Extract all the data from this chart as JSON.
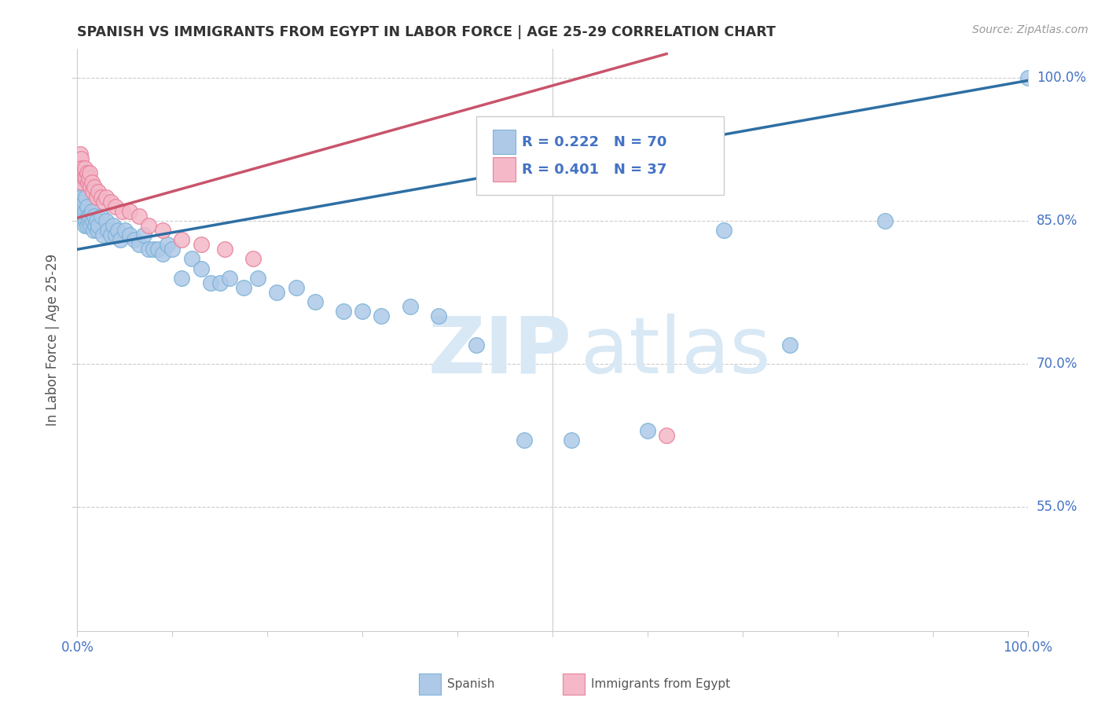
{
  "title": "SPANISH VS IMMIGRANTS FROM EGYPT IN LABOR FORCE | AGE 25-29 CORRELATION CHART",
  "source_text": "Source: ZipAtlas.com",
  "ylabel": "In Labor Force | Age 25-29",
  "xlim": [
    0.0,
    1.0
  ],
  "ylim": [
    0.42,
    1.03
  ],
  "yticks": [
    0.55,
    0.7,
    0.85,
    1.0
  ],
  "ytick_labels": [
    "55.0%",
    "70.0%",
    "85.0%",
    "100.0%"
  ],
  "blue_color": "#aec9e8",
  "blue_edge_color": "#7db3d8",
  "pink_color": "#f4b8c8",
  "pink_edge_color": "#e8829c",
  "blue_line_color": "#2E6FA3",
  "pink_line_color": "#c9546c",
  "background_color": "#ffffff",
  "grid_color": "#cccccc",
  "tick_color": "#4472C4",
  "title_color": "#333333",
  "watermark_color": "#d8e8f5",
  "spanish_x": [
    0.003,
    0.003,
    0.004,
    0.005,
    0.005,
    0.006,
    0.007,
    0.007,
    0.008,
    0.008,
    0.009,
    0.009,
    0.01,
    0.01,
    0.011,
    0.012,
    0.013,
    0.014,
    0.015,
    0.016,
    0.017,
    0.018,
    0.019,
    0.02,
    0.021,
    0.022,
    0.025,
    0.027,
    0.03,
    0.032,
    0.035,
    0.038,
    0.04,
    0.043,
    0.045,
    0.05,
    0.055,
    0.06,
    0.065,
    0.07,
    0.075,
    0.08,
    0.085,
    0.09,
    0.095,
    0.1,
    0.11,
    0.12,
    0.13,
    0.14,
    0.15,
    0.16,
    0.175,
    0.19,
    0.21,
    0.23,
    0.25,
    0.28,
    0.3,
    0.32,
    0.35,
    0.38,
    0.42,
    0.47,
    0.52,
    0.6,
    0.68,
    0.75,
    0.85,
    1.0
  ],
  "spanish_y": [
    0.895,
    0.88,
    0.87,
    0.875,
    0.855,
    0.865,
    0.87,
    0.855,
    0.86,
    0.845,
    0.875,
    0.85,
    0.865,
    0.845,
    0.855,
    0.85,
    0.855,
    0.845,
    0.86,
    0.85,
    0.84,
    0.855,
    0.845,
    0.85,
    0.84,
    0.845,
    0.855,
    0.835,
    0.85,
    0.84,
    0.835,
    0.845,
    0.835,
    0.84,
    0.83,
    0.84,
    0.835,
    0.83,
    0.825,
    0.835,
    0.82,
    0.82,
    0.82,
    0.815,
    0.825,
    0.82,
    0.79,
    0.81,
    0.8,
    0.785,
    0.785,
    0.79,
    0.78,
    0.79,
    0.775,
    0.78,
    0.765,
    0.755,
    0.755,
    0.75,
    0.76,
    0.75,
    0.72,
    0.62,
    0.62,
    0.63,
    0.84,
    0.72,
    0.85,
    1.0
  ],
  "egypt_x": [
    0.001,
    0.002,
    0.003,
    0.003,
    0.004,
    0.004,
    0.005,
    0.005,
    0.006,
    0.007,
    0.008,
    0.009,
    0.01,
    0.011,
    0.012,
    0.013,
    0.014,
    0.015,
    0.016,
    0.018,
    0.02,
    0.022,
    0.025,
    0.028,
    0.03,
    0.035,
    0.04,
    0.048,
    0.055,
    0.065,
    0.075,
    0.09,
    0.11,
    0.13,
    0.155,
    0.185,
    0.62
  ],
  "egypt_y": [
    0.91,
    0.905,
    0.92,
    0.9,
    0.915,
    0.895,
    0.905,
    0.89,
    0.9,
    0.895,
    0.905,
    0.895,
    0.9,
    0.89,
    0.895,
    0.9,
    0.885,
    0.89,
    0.88,
    0.885,
    0.875,
    0.88,
    0.875,
    0.87,
    0.875,
    0.87,
    0.865,
    0.86,
    0.86,
    0.855,
    0.845,
    0.84,
    0.83,
    0.825,
    0.82,
    0.81,
    0.625
  ],
  "blue_line_x": [
    0.0,
    1.0
  ],
  "blue_line_y": [
    0.82,
    0.997
  ],
  "pink_line_x": [
    0.0,
    0.62
  ],
  "pink_line_y": [
    0.853,
    1.025
  ],
  "legend_r_blue": "R = 0.222",
  "legend_n_blue": "N = 70",
  "legend_r_pink": "R = 0.401",
  "legend_n_pink": "N = 37"
}
